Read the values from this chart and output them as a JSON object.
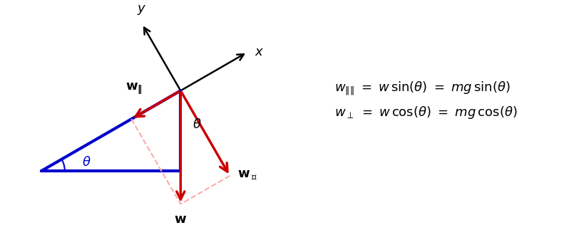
{
  "theta_deg": 30,
  "bg_color": "#ffffff",
  "slope_color": "#0000cc",
  "slope_linewidth": 3.0,
  "arrow_color_red": "#cc0000",
  "arrow_color_black": "#000000",
  "dashed_color": "#ffaaaa",
  "text_color": "#000000",
  "label_w_parallel": "$\\mathbf{w}_{\\boldsymbol{\\|}}$",
  "label_w_perp": "$\\mathbf{w}_{\\boldsymbol{\\perp}}$",
  "label_w": "$\\mathbf{w}$",
  "label_x": "$x$",
  "label_y": "$y$",
  "label_theta_slope": "$\\theta$",
  "label_theta_angle": "$\\theta$"
}
